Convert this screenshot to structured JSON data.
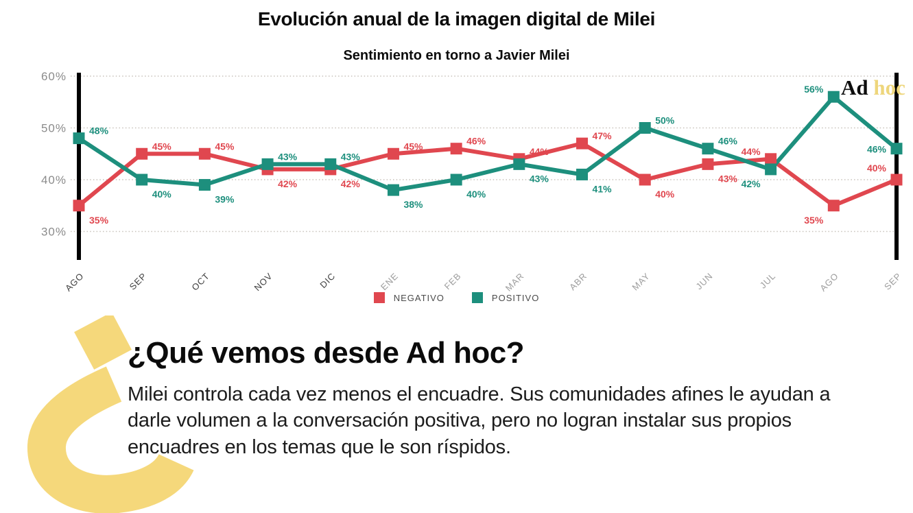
{
  "header": {
    "title": "Evolución anual de la imagen digital de Milei",
    "subtitle": "Sentimiento en torno a Javier Milei"
  },
  "logo": {
    "ad": "Ad",
    "hoc": "hoc",
    "hoc_color": "#eed67c"
  },
  "chart_data": {
    "type": "line",
    "categories": [
      "AGO",
      "SEP",
      "OCT",
      "NOV",
      "DIC",
      "ENE",
      "FEB",
      "MAR",
      "ABR",
      "MAY",
      "JUN",
      "JUL",
      "AGO",
      "SEP"
    ],
    "series": [
      {
        "name": "NEGATIVO",
        "color": "#e0474f",
        "values": [
          35,
          45,
          45,
          42,
          42,
          45,
          46,
          44,
          47,
          40,
          43,
          44,
          35,
          40
        ]
      },
      {
        "name": "POSITIVO",
        "color": "#1d8f7d",
        "values": [
          48,
          40,
          39,
          43,
          43,
          38,
          40,
          43,
          41,
          50,
          46,
          42,
          56,
          46
        ]
      }
    ],
    "ytick_labels": [
      "60%",
      "50%",
      "40%",
      "30%"
    ],
    "yticks": [
      60,
      50,
      40,
      30
    ],
    "ylim": [
      27,
      62
    ],
    "grid": "horizontal-dotted",
    "legend_position": "bottom-center",
    "start_end_marker_indices": [
      0,
      13
    ],
    "dark_category_count": 5,
    "data_label_suffix": "%"
  },
  "legend": {
    "items": [
      {
        "label": "NEGATIVO",
        "color": "#e0474f"
      },
      {
        "label": "POSITIVO",
        "color": "#1d8f7d"
      }
    ]
  },
  "commentary": {
    "heading": "¿Qué vemos desde Ad hoc?",
    "body": "Milei controla cada vez menos el encuadre. Sus comunidades afines le ayudan a darle volumen a la conversación positiva, pero no logran instalar sus propios encuadres en los temas que le son ríspidos."
  },
  "decor": {
    "glyph": "inverted-question-mark",
    "color": "#f5d87b"
  }
}
